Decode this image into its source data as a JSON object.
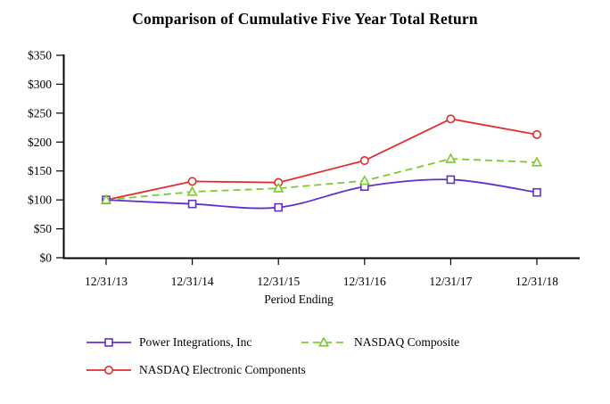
{
  "chart_data": {
    "type": "line",
    "title": "Comparison of Cumulative Five Year Total Return",
    "xlabel": "Period Ending",
    "ylabel": "",
    "x_tick_labels": [
      "12/31/13",
      "12/31/14",
      "12/31/15",
      "12/31/16",
      "12/31/17",
      "12/31/18"
    ],
    "y_tick_labels": [
      "$0",
      "$50",
      "$100",
      "$150",
      "$200",
      "$250",
      "$300",
      "$350"
    ],
    "ylim": [
      0,
      350
    ],
    "y_tick_step": 50,
    "grid": false,
    "legend_position": "bottom-left",
    "axis_color": "#000000",
    "background_color": "#ffffff",
    "series": [
      {
        "name": "Power Integrations, Inc",
        "color": "#6231cd",
        "marker": "square",
        "line_style": "solid",
        "line_shape": "smooth",
        "values": [
          100,
          93,
          87,
          123,
          135,
          113
        ]
      },
      {
        "name": "NASDAQ Composite",
        "color": "#7ccb2e",
        "marker": "triangle",
        "line_style": "dashed",
        "line_shape": "straight",
        "values": [
          100,
          114,
          120,
          133,
          171,
          165
        ]
      },
      {
        "name": "NASDAQ Electronic Components",
        "color": "#e12d2d",
        "marker": "circle",
        "line_style": "solid",
        "line_shape": "straight",
        "values": [
          100,
          132,
          130,
          168,
          240,
          213
        ]
      }
    ]
  }
}
